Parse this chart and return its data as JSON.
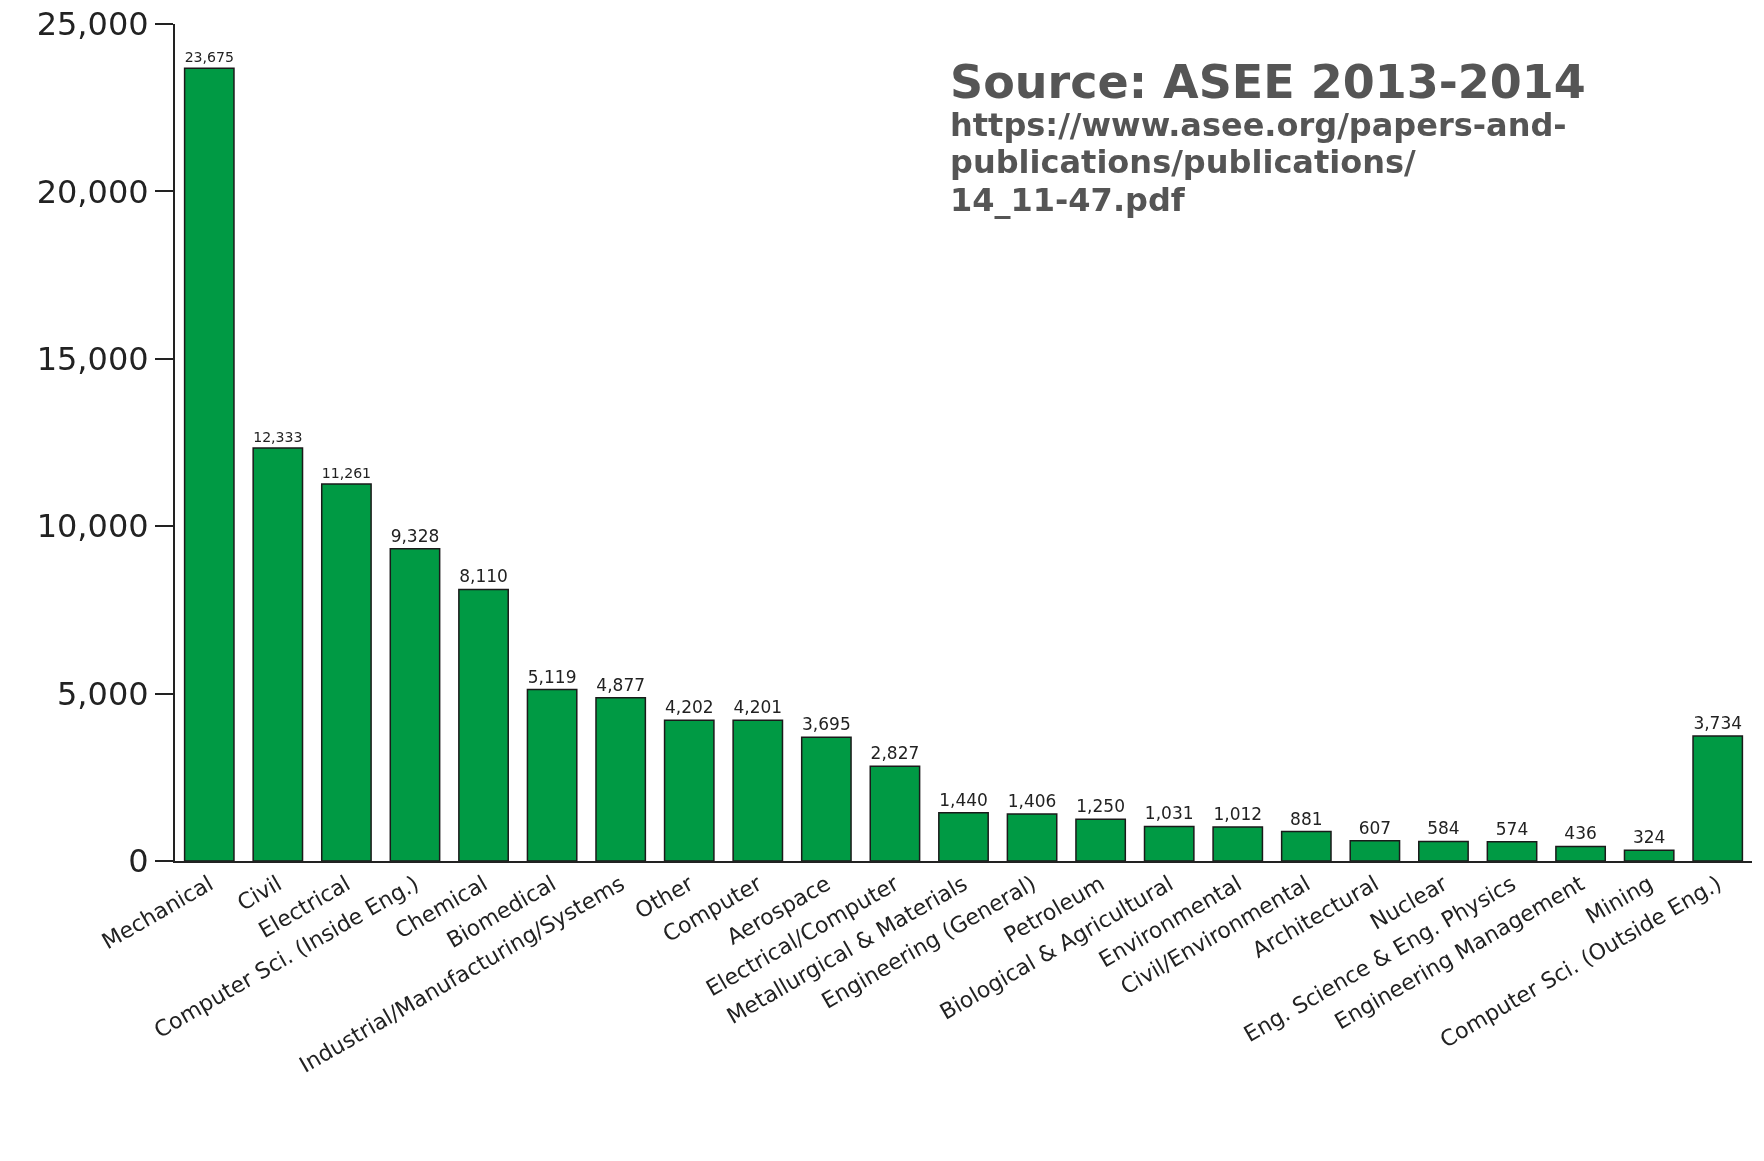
{
  "chart_data": {
    "type": "bar",
    "categories": [
      "Mechanical",
      "Civil",
      "Electrical",
      "Computer Sci. (Inside Eng.)",
      "Chemical",
      "Biomedical",
      "Industrial/Manufacturing/Systems",
      "Other",
      "Computer",
      "Aerospace",
      "Electrical/Computer",
      "Metallurgical & Materials",
      "Engineering (General)",
      "Petroleum",
      "Biological & Agricultural",
      "Environmental",
      "Civil/Environmental",
      "Architectural",
      "Nuclear",
      "Eng. Science & Eng. Physics",
      "Engineering Management",
      "Mining",
      "Computer Sci. (Outside Eng.)"
    ],
    "values": [
      23675,
      12333,
      11261,
      9328,
      8110,
      5119,
      4877,
      4202,
      4201,
      3695,
      2827,
      1440,
      1406,
      1250,
      1031,
      1012,
      881,
      607,
      584,
      574,
      436,
      324,
      3734
    ],
    "color": "#009a44",
    "value_labels": [
      "23,675",
      "12,333",
      "11,261",
      "9,328",
      "8,110",
      "5,119",
      "4,877",
      "4,202",
      "4,201",
      "3,695",
      "2,827",
      "1,440",
      "1,406",
      "1,250",
      "1,031",
      "1,012",
      "881",
      "607",
      "584",
      "574",
      "436",
      "324",
      "3,734"
    ],
    "ylim": [
      0,
      25000
    ],
    "yticks": [
      {
        "value": 0,
        "label": "0"
      },
      {
        "value": 5000,
        "label": "5,000"
      },
      {
        "value": 10000,
        "label": "10,000"
      },
      {
        "value": 15000,
        "label": "15,000"
      },
      {
        "value": 20000,
        "label": "20,000"
      },
      {
        "value": 25000,
        "label": "25,000"
      }
    ],
    "grid": false,
    "annotations": [
      "Source: ASEE 2013-2014",
      "https://www.asee.org/papers-and-",
      "publications/publications/",
      "14_11-47.pdf"
    ]
  }
}
